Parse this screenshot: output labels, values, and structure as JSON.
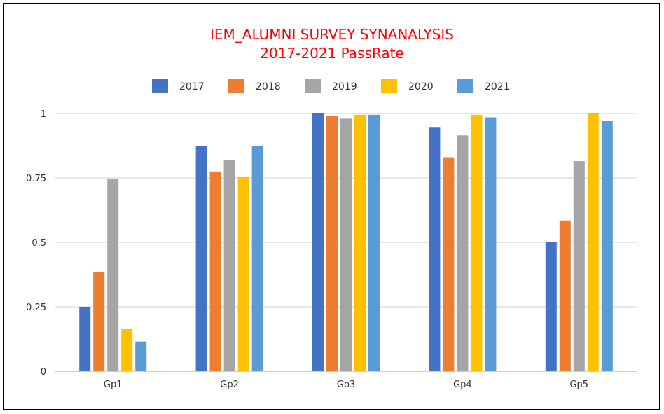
{
  "chart_data": {
    "type": "bar",
    "title": "IEM_ALUMNI SURVEY SYNANALYSIS",
    "subtitle": "2017-2021 PassRate",
    "xlabel": "",
    "ylabel": "",
    "categories": [
      "Gp1",
      "Gp2",
      "Gp3",
      "Gp4",
      "Gp5"
    ],
    "series": [
      {
        "name": "2017",
        "color": "#4472c4",
        "values": [
          0.25,
          0.875,
          1.0,
          0.945,
          0.5
        ]
      },
      {
        "name": "2018",
        "color": "#ed7d31",
        "values": [
          0.385,
          0.775,
          0.99,
          0.83,
          0.585
        ]
      },
      {
        "name": "2019",
        "color": "#a5a5a5",
        "values": [
          0.745,
          0.82,
          0.98,
          0.915,
          0.815
        ]
      },
      {
        "name": "2020",
        "color": "#ffc000",
        "values": [
          0.165,
          0.755,
          0.995,
          0.995,
          1.0
        ]
      },
      {
        "name": "2021",
        "color": "#5b9bd5",
        "values": [
          0.115,
          0.875,
          0.995,
          0.985,
          0.97
        ]
      }
    ],
    "ylim": [
      0,
      1
    ],
    "yticks": [
      "0",
      "0.25",
      "0.5",
      "0.75",
      "1"
    ],
    "grid": true,
    "legend_position": "top"
  }
}
